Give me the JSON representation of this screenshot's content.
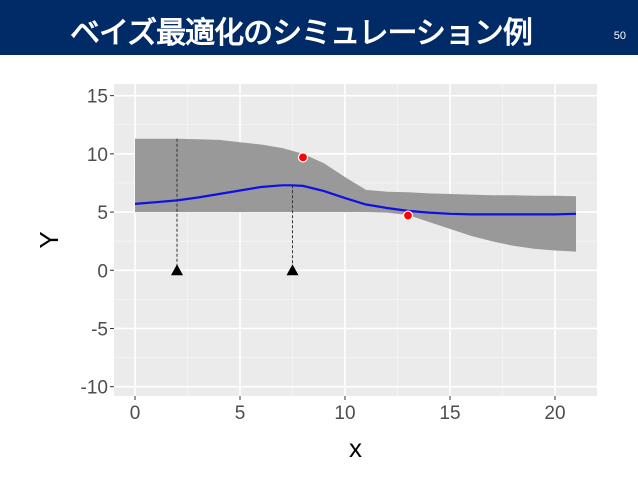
{
  "slide": {
    "title": "ベイズ最適化のシミュレーション例",
    "page_number": "50"
  },
  "colors": {
    "header_bg": "#002b67",
    "panel_bg": "#ebebeb",
    "band_fill": "#999999",
    "mean_line": "#1010e0",
    "observed_point": "#ff0000",
    "sample_marker": "#000000"
  },
  "chart_data": {
    "type": "line",
    "xlabel": "x",
    "ylabel": "Y",
    "xlim": [
      -1,
      22
    ],
    "ylim": [
      -10.8,
      16
    ],
    "x_ticks": [
      0,
      5,
      10,
      15,
      20
    ],
    "y_ticks": [
      -10,
      -5,
      0,
      5,
      10,
      15
    ],
    "grid": true,
    "series": [
      {
        "kind": "mean",
        "x": [
          0,
          1,
          2,
          3,
          4,
          5,
          6,
          7,
          7.5,
          8,
          9,
          10,
          11,
          12,
          13,
          14,
          15,
          16,
          17,
          18,
          19,
          20,
          21
        ],
        "y": [
          5.7,
          5.85,
          6.0,
          6.25,
          6.55,
          6.85,
          7.15,
          7.3,
          7.3,
          7.25,
          6.8,
          6.2,
          5.65,
          5.35,
          5.1,
          4.95,
          4.85,
          4.8,
          4.8,
          4.8,
          4.8,
          4.8,
          4.85
        ]
      },
      {
        "kind": "band_upper",
        "x": [
          0,
          1,
          2,
          3,
          4,
          5,
          6,
          7,
          7.5,
          8,
          9,
          10,
          11,
          12,
          13,
          14,
          15,
          16,
          17,
          18,
          19,
          20,
          21
        ],
        "y": [
          11.3,
          11.3,
          11.3,
          11.25,
          11.2,
          11.0,
          10.8,
          10.5,
          10.25,
          10.0,
          9.2,
          8.0,
          6.9,
          6.75,
          6.7,
          6.6,
          6.55,
          6.5,
          6.45,
          6.45,
          6.4,
          6.4,
          6.35
        ]
      },
      {
        "kind": "band_lower",
        "x": [
          0,
          1,
          2,
          3,
          4,
          5,
          6,
          7,
          7.5,
          8,
          9,
          10,
          11,
          12,
          13,
          14,
          15,
          16,
          17,
          18,
          19,
          20,
          21
        ],
        "y": [
          5.0,
          5.0,
          5.0,
          5.0,
          5.0,
          5.0,
          5.0,
          5.0,
          5.0,
          5.0,
          5.0,
          5.0,
          5.0,
          4.95,
          4.75,
          4.15,
          3.55,
          2.95,
          2.5,
          2.1,
          1.85,
          1.7,
          1.6
        ]
      }
    ],
    "observed_points": [
      {
        "x": 8,
        "y": 9.7
      },
      {
        "x": 13,
        "y": 4.7
      }
    ],
    "sampled_points": [
      {
        "x": 2,
        "y": 0,
        "line_top": 11.3
      },
      {
        "x": 7.5,
        "y": 0,
        "line_top": 7.3
      }
    ]
  }
}
